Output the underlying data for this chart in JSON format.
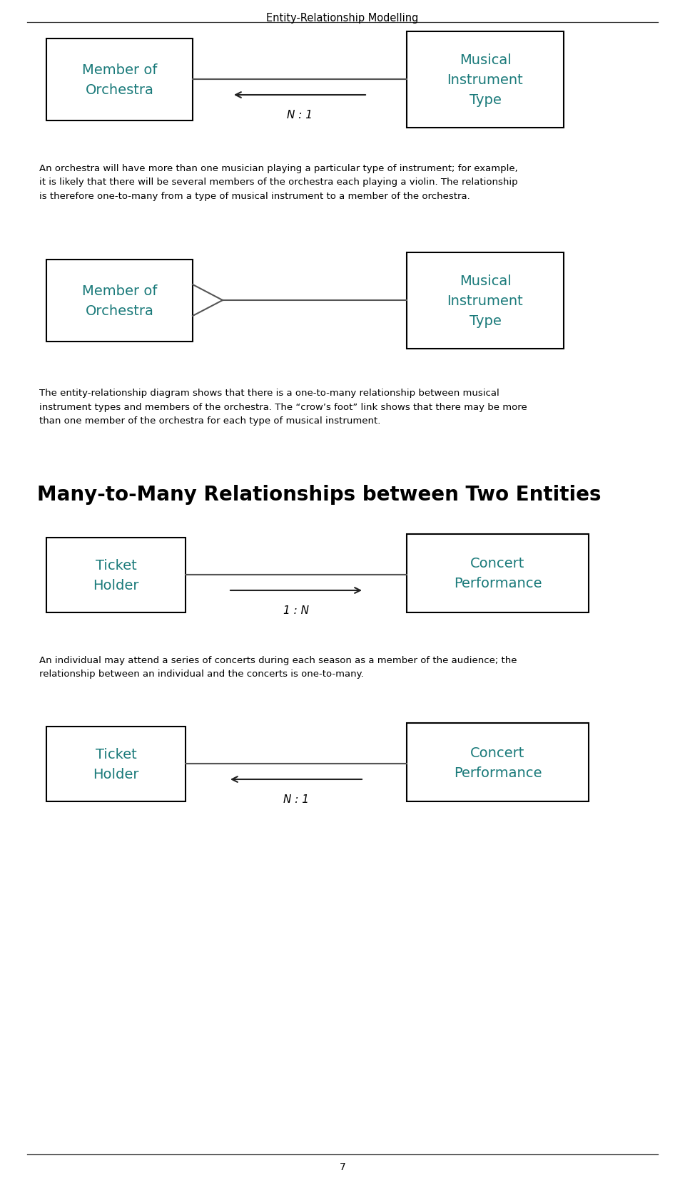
{
  "page_title": "Entity-Relationship Modelling",
  "page_number": "7",
  "background_color": "#ffffff",
  "text_color": "#000000",
  "entity_text_color": "#1a7a7a",
  "box_edge_color": "#000000",
  "line_color": "#555555",
  "arrow_color": "#222222",
  "section_heading": "Many-to-Many Relationships between Two Entities",
  "diagram1": {
    "left_label": "Member of\nOrchestra",
    "right_label": "Musical\nInstrument\nType",
    "arrow_label": "N : 1",
    "arrow_direction": "left"
  },
  "paragraph1": "An orchestra will have more than one musician playing a particular type of instrument; for example,\nit is likely that there will be several members of the orchestra each playing a violin. The relationship\nis therefore one-to-many from a type of musical instrument to a member of the orchestra.",
  "diagram2": {
    "left_label": "Member of\nOrchestra",
    "right_label": "Musical\nInstrument\nType",
    "connection": "crowfoot_left"
  },
  "paragraph2": "The entity-relationship diagram shows that there is a one-to-many relationship between musical\ninstrument types and members of the orchestra. The “crow’s foot” link shows that there may be more\nthan one member of the orchestra for each type of musical instrument.",
  "diagram3": {
    "left_label": "Ticket\nHolder",
    "right_label": "Concert\nPerformance",
    "arrow_label": "1 : N",
    "arrow_direction": "right"
  },
  "paragraph3": "An individual may attend a series of concerts during each season as a member of the audience; the\nrelationship between an individual and the concerts is one-to-many.",
  "diagram4": {
    "left_label": "Ticket\nHolder",
    "right_label": "Concert\nPerformance",
    "arrow_label": "N : 1",
    "arrow_direction": "left"
  }
}
